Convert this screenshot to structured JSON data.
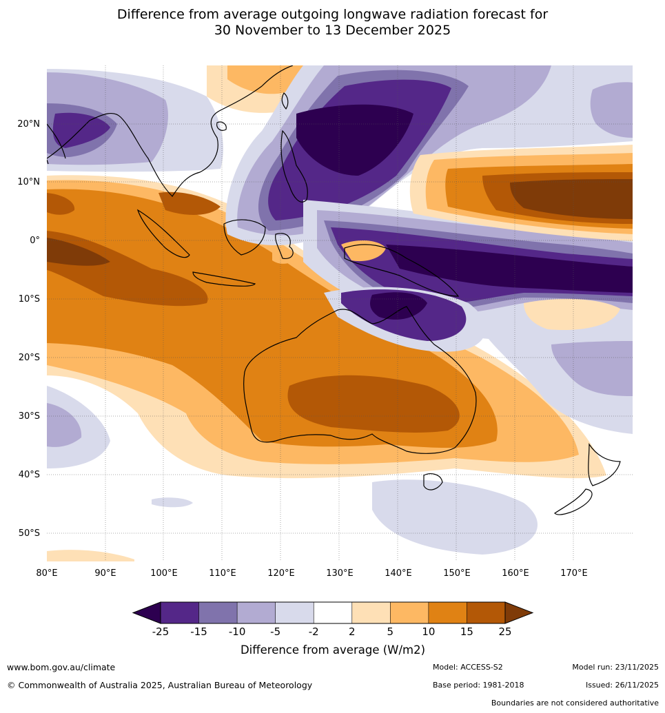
{
  "title": {
    "line1": "Difference from average outgoing longwave radiation forecast for",
    "line2": "30 November to 13 December 2025"
  },
  "map": {
    "lon_range": [
      80,
      180
    ],
    "lat_range": [
      -55,
      30
    ],
    "lon_ticks": [
      "80°E",
      "90°E",
      "100°E",
      "110°E",
      "120°E",
      "130°E",
      "140°E",
      "150°E",
      "160°E",
      "170°E"
    ],
    "lat_ticks": [
      "20°N",
      "10°N",
      "0°",
      "10°S",
      "20°S",
      "30°S",
      "40°S",
      "50°S"
    ]
  },
  "colorbar": {
    "label": "Difference from average (W/m2)",
    "ticks": [
      "-25",
      "-15",
      "-10",
      "-5",
      "-2",
      "2",
      "5",
      "10",
      "15",
      "25"
    ],
    "colors": [
      "#2d0050",
      "#542788",
      "#8073ac",
      "#b2abd2",
      "#d8daeb",
      "#ffffff",
      "#fee0b6",
      "#fdb863",
      "#e08214",
      "#b35806",
      "#7f3b08"
    ]
  },
  "footer": {
    "website": "www.bom.gov.au/climate",
    "copyright": "© Commonwealth of Australia 2025, Australian Bureau of Meteorology",
    "model": "Model: ACCESS-S2",
    "base_period": "Base period: 1981-2018",
    "model_run": "Model run: 23/11/2025",
    "issued": "Issued: 26/11/2025",
    "disclaimer": "Boundaries are not considered authoritative"
  }
}
